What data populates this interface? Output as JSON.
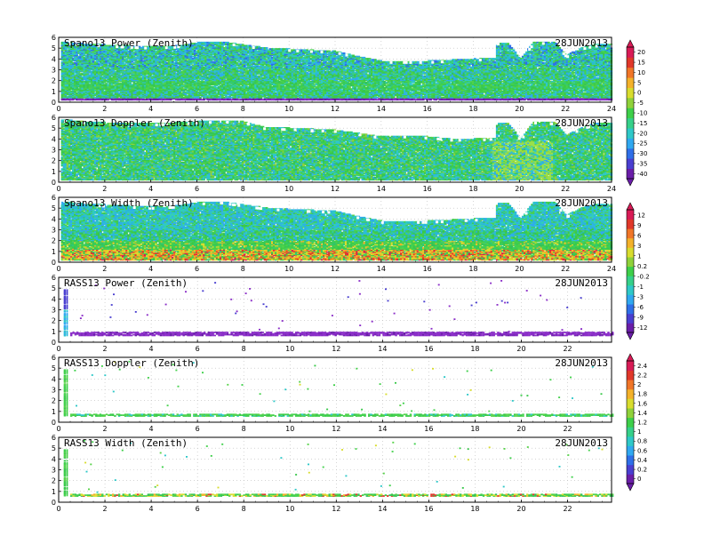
{
  "date": "28JUN2013",
  "chart_data": [
    {
      "type": "heatmap",
      "title": "Spano13 Power (Zenith)",
      "date": "28JUN2013",
      "x_ticks": [
        "0",
        "2",
        "4",
        "6",
        "8",
        "10",
        "12",
        "14",
        "16",
        "18",
        "20",
        "22",
        "24"
      ],
      "y_ticks": [
        "0",
        "1",
        "2",
        "3",
        "4",
        "5",
        "6"
      ],
      "xlim": [
        0,
        24
      ],
      "ylim": [
        0,
        6
      ],
      "coverage_top_km": [
        [
          0,
          5.6
        ],
        [
          1,
          5.4
        ],
        [
          2,
          5.3
        ],
        [
          3,
          5.2
        ],
        [
          4,
          5.1
        ],
        [
          5,
          5.2
        ],
        [
          6,
          5.5
        ],
        [
          7,
          5.6
        ],
        [
          8,
          5.3
        ],
        [
          9,
          5.0
        ],
        [
          10,
          4.9
        ],
        [
          11,
          4.8
        ],
        [
          12,
          4.7
        ],
        [
          13,
          4.2
        ],
        [
          14,
          3.8
        ],
        [
          15,
          3.8
        ],
        [
          16,
          3.8
        ],
        [
          17,
          3.9
        ],
        [
          18,
          4.0
        ],
        [
          18.9,
          4.1
        ],
        [
          19,
          5.5
        ],
        [
          19.5,
          5.4
        ],
        [
          20,
          4.0
        ],
        [
          20.6,
          5.6
        ],
        [
          21.5,
          5.5
        ],
        [
          22,
          4.3
        ],
        [
          22.6,
          5.0
        ],
        [
          23.2,
          5.3
        ],
        [
          24,
          5.3
        ]
      ],
      "colorscale": "power"
    },
    {
      "type": "heatmap",
      "title": "Spano13 Doppler (Zenith)",
      "date": "28JUN2013",
      "x_ticks": [
        "0",
        "2",
        "4",
        "6",
        "8",
        "10",
        "12",
        "14",
        "16",
        "18",
        "20",
        "22",
        "24"
      ],
      "y_ticks": [
        "0",
        "1",
        "2",
        "3",
        "4",
        "5",
        "6"
      ],
      "xlim": [
        0,
        24
      ],
      "ylim": [
        0,
        6
      ],
      "coverage_top_km": [
        [
          0,
          5.8
        ],
        [
          1,
          5.6
        ],
        [
          2,
          5.5
        ],
        [
          3,
          5.4
        ],
        [
          4,
          5.4
        ],
        [
          5,
          5.5
        ],
        [
          6,
          5.6
        ],
        [
          7,
          5.7
        ],
        [
          8,
          5.6
        ],
        [
          9,
          5.0
        ],
        [
          10,
          5.0
        ],
        [
          11,
          4.9
        ],
        [
          12,
          4.8
        ],
        [
          13,
          4.5
        ],
        [
          14,
          4.2
        ],
        [
          15,
          4.3
        ],
        [
          16,
          4.2
        ],
        [
          17,
          4.0
        ],
        [
          18,
          4.0
        ],
        [
          18.9,
          4.1
        ],
        [
          19,
          5.5
        ],
        [
          19.5,
          5.4
        ],
        [
          20,
          4.0
        ],
        [
          20.6,
          5.6
        ],
        [
          21.5,
          5.5
        ],
        [
          22,
          4.3
        ],
        [
          22.6,
          5.0
        ],
        [
          23.2,
          5.4
        ],
        [
          24,
          5.4
        ]
      ],
      "colorscale": "doppler"
    },
    {
      "type": "heatmap",
      "title": "Spano13 Width (Zenith)",
      "date": "28JUN2013",
      "x_ticks": [
        "0",
        "2",
        "4",
        "6",
        "8",
        "10",
        "12",
        "14",
        "16",
        "18",
        "20",
        "22",
        "24"
      ],
      "y_ticks": [
        "0",
        "1",
        "2",
        "3",
        "4",
        "5",
        "6"
      ],
      "xlim": [
        0,
        24
      ],
      "ylim": [
        0,
        6
      ],
      "coverage_top_km": [
        [
          0,
          5.6
        ],
        [
          1,
          5.4
        ],
        [
          2,
          5.3
        ],
        [
          3,
          5.2
        ],
        [
          4,
          5.1
        ],
        [
          5,
          5.2
        ],
        [
          6,
          5.5
        ],
        [
          7,
          5.6
        ],
        [
          8,
          5.3
        ],
        [
          9,
          5.0
        ],
        [
          10,
          4.9
        ],
        [
          11,
          4.8
        ],
        [
          12,
          4.7
        ],
        [
          13,
          4.2
        ],
        [
          14,
          3.8
        ],
        [
          15,
          3.8
        ],
        [
          16,
          3.8
        ],
        [
          17,
          3.9
        ],
        [
          18,
          4.0
        ],
        [
          18.9,
          4.1
        ],
        [
          19,
          5.5
        ],
        [
          19.5,
          5.4
        ],
        [
          20,
          4.0
        ],
        [
          20.6,
          5.6
        ],
        [
          21.5,
          5.5
        ],
        [
          22,
          4.3
        ],
        [
          22.6,
          5.0
        ],
        [
          23.2,
          5.3
        ],
        [
          24,
          5.3
        ]
      ],
      "colorscale": "width"
    },
    {
      "type": "scatter",
      "title": "RASS13 Power (Zenith)",
      "date": "28JUN2013",
      "x_ticks": [
        "0",
        "2",
        "4",
        "6",
        "8",
        "10",
        "12",
        "14",
        "16",
        "18",
        "20",
        "22"
      ],
      "y_ticks": [
        "0",
        "1",
        "2",
        "3",
        "4",
        "5",
        "6"
      ],
      "xlim": [
        0,
        23.9
      ],
      "ylim": [
        0,
        6
      ],
      "band_km": [
        0.7,
        1.0
      ],
      "colorscale": "power"
    },
    {
      "type": "scatter",
      "title": "RASS13 Doppler (Zenith)",
      "date": "28JUN2013",
      "x_ticks": [
        "0",
        "2",
        "4",
        "6",
        "8",
        "10",
        "12",
        "14",
        "16",
        "18",
        "20",
        "22"
      ],
      "y_ticks": [
        "0",
        "1",
        "2",
        "3",
        "4",
        "5",
        "6"
      ],
      "xlim": [
        0,
        23.9
      ],
      "ylim": [
        0,
        6
      ],
      "band_km": [
        0.65,
        0.85
      ],
      "colorscale": "doppler"
    },
    {
      "type": "scatter",
      "title": "RASS13 Width (Zenith)",
      "date": "28JUN2013",
      "x_ticks": [
        "0",
        "2",
        "4",
        "6",
        "8",
        "10",
        "12",
        "14",
        "16",
        "18",
        "20",
        "22"
      ],
      "y_ticks": [
        "0",
        "1",
        "2",
        "3",
        "4",
        "5",
        "6"
      ],
      "xlim": [
        0,
        23.9
      ],
      "ylim": [
        0,
        6
      ],
      "band_km": [
        0.65,
        0.85
      ],
      "colorscale": "width"
    }
  ],
  "colorbars": [
    {
      "labels": [
        "20",
        "15",
        "10",
        "5",
        "0",
        "-5",
        "-10",
        "-15",
        "-20",
        "-25",
        "-30",
        "-35",
        "-40"
      ]
    },
    {
      "labels": [
        "12",
        "9",
        "6",
        "3",
        "1",
        "0.2",
        "-0.2",
        "-1",
        "-3",
        "-6",
        "-9",
        "-12"
      ]
    },
    {
      "labels": [
        "2.4",
        "2.2",
        "2",
        "1.8",
        "1.6",
        "1.4",
        "1.2",
        "1",
        "0.8",
        "0.6",
        "0.4",
        "0.2",
        "0"
      ]
    }
  ],
  "colors": {
    "power": [
      "#6a1ea8",
      "#4a3fd0",
      "#2f6fe8",
      "#30a8f0",
      "#2fc8c8",
      "#36d08a",
      "#3ecf4a",
      "#8fd13a",
      "#d8dc2e",
      "#f3b12a",
      "#f07628",
      "#e0382a",
      "#d81b56"
    ],
    "width": [
      "#6a1ea8",
      "#4a3fd0",
      "#2f6fe8",
      "#30a8f0",
      "#2fc8c8",
      "#36d08a",
      "#3ecf4a",
      "#8fd13a",
      "#d8dc2e",
      "#f3b12a",
      "#f07628",
      "#e0382a",
      "#d81b56"
    ]
  }
}
